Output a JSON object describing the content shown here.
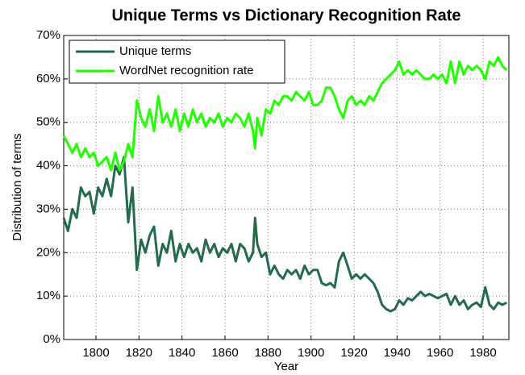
{
  "chart_data": {
    "type": "line",
    "title": "Unique Terms vs Dictionary Recognition Rate",
    "x_label": "Year",
    "y_label": "Distribution of terms",
    "x": [
      1785,
      1787,
      1789,
      1791,
      1793,
      1795,
      1797,
      1799,
      1801,
      1803,
      1805,
      1807,
      1809,
      1811,
      1813,
      1815,
      1817,
      1819,
      1821,
      1823,
      1825,
      1827,
      1829,
      1831,
      1833,
      1835,
      1837,
      1839,
      1841,
      1843,
      1845,
      1847,
      1849,
      1851,
      1853,
      1855,
      1857,
      1859,
      1861,
      1863,
      1865,
      1867,
      1869,
      1871,
      1873,
      1874,
      1875,
      1877,
      1879,
      1881,
      1883,
      1885,
      1887,
      1889,
      1891,
      1893,
      1895,
      1897,
      1899,
      1901,
      1903,
      1905,
      1907,
      1909,
      1911,
      1913,
      1915,
      1917,
      1919,
      1921,
      1923,
      1925,
      1927,
      1929,
      1931,
      1933,
      1935,
      1937,
      1939,
      1941,
      1943,
      1945,
      1947,
      1949,
      1951,
      1953,
      1955,
      1957,
      1959,
      1961,
      1963,
      1965,
      1967,
      1969,
      1971,
      1973,
      1975,
      1977,
      1979,
      1981,
      1983,
      1985,
      1987,
      1989,
      1991
    ],
    "series": [
      {
        "name": "Unique terms",
        "color": "#236b4b",
        "values": [
          28,
          25,
          30,
          28,
          35,
          33,
          34,
          29,
          35,
          33,
          37,
          33,
          40,
          38,
          42,
          27,
          35,
          16,
          23,
          20,
          24,
          26,
          17,
          22,
          20,
          25,
          18,
          22,
          19,
          22,
          20,
          21,
          18,
          23,
          20,
          22,
          19,
          21,
          20,
          22,
          18,
          22,
          21,
          18,
          20,
          28,
          22,
          19,
          20,
          15,
          17,
          15,
          14,
          16,
          15,
          16,
          14,
          17,
          15,
          16,
          16,
          13,
          12.5,
          13,
          12,
          18,
          20,
          17,
          14,
          15,
          14,
          15,
          14,
          13,
          11,
          8,
          7,
          6.5,
          7,
          9,
          8,
          9.5,
          9,
          10,
          11,
          10,
          10.5,
          10,
          9.5,
          10,
          10.5,
          8,
          10,
          8,
          9,
          7,
          8,
          8.5,
          7.5,
          12,
          8,
          7,
          8.5,
          8,
          8.5
        ]
      },
      {
        "name": "WordNet recognition rate",
        "color": "#22ff00",
        "values": [
          47,
          45,
          43,
          45,
          42,
          44,
          42,
          43,
          40,
          41,
          42,
          39,
          43,
          39,
          41,
          45,
          42,
          55,
          51,
          49,
          53,
          48,
          56,
          50,
          52,
          49,
          53,
          48,
          52,
          49,
          53,
          50,
          52,
          49,
          51,
          50,
          52,
          49,
          51,
          50,
          52,
          51,
          49,
          52,
          48,
          44,
          51,
          47,
          53,
          52,
          55,
          54,
          56,
          56,
          55,
          57,
          56,
          55,
          57,
          54,
          54,
          55,
          58,
          58,
          56,
          53,
          51,
          55,
          56,
          54,
          55,
          54,
          56,
          55,
          57,
          59,
          60,
          61,
          62,
          64,
          61,
          62,
          61,
          62,
          61,
          60,
          60,
          61,
          60,
          61,
          59,
          64,
          59,
          64,
          61,
          63,
          62,
          63,
          62,
          60,
          64,
          63,
          65,
          63,
          62
        ]
      }
    ],
    "xlim": [
      1785,
      1992
    ],
    "xticks": [
      1800,
      1820,
      1840,
      1860,
      1880,
      1900,
      1920,
      1940,
      1960,
      1980
    ],
    "ylim": [
      0,
      70
    ],
    "yticks": [
      {
        "value": 0,
        "label": "0%"
      },
      {
        "value": 10,
        "label": "10%"
      },
      {
        "value": 20,
        "label": "20%"
      },
      {
        "value": 30,
        "label": "30%"
      },
      {
        "value": 40,
        "label": "40%"
      },
      {
        "value": 50,
        "label": "50%"
      },
      {
        "value": 60,
        "label": "60%"
      },
      {
        "value": 70,
        "label": "70%"
      }
    ],
    "grid": true,
    "legend": "upper left"
  }
}
